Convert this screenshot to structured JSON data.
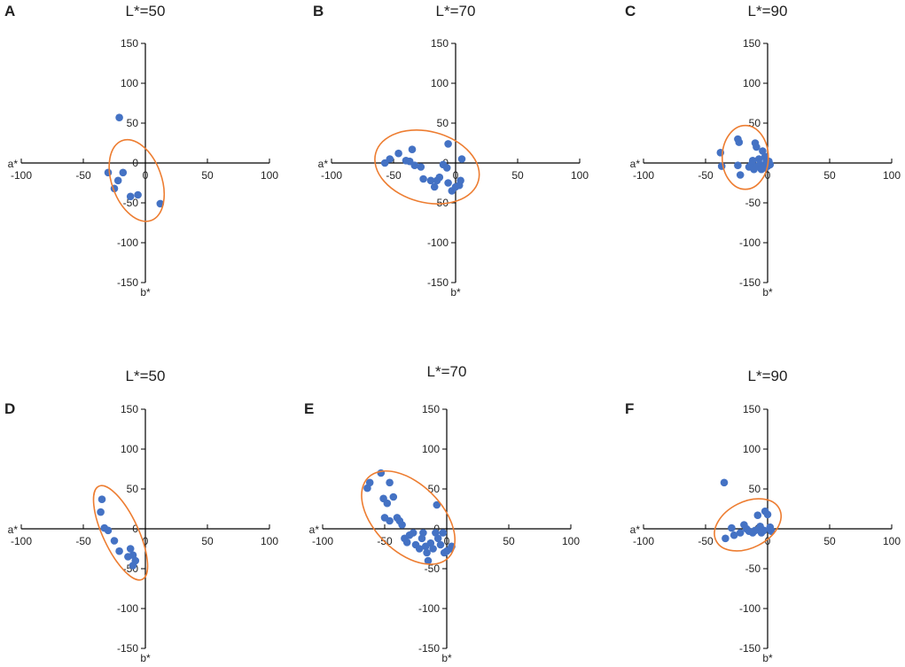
{
  "chart_data": [
    {
      "panel": "A",
      "type": "scatter",
      "title": "L*=50",
      "xlabel": "a*",
      "ylabel": "b*",
      "xlim": [
        -100,
        100
      ],
      "ylim": [
        -150,
        150
      ],
      "xticks": [
        "-100",
        "-50",
        "0",
        "50",
        "100"
      ],
      "yticks": [
        "150",
        "100",
        "50",
        "0",
        "-50",
        "-100",
        "-150"
      ],
      "points": [
        [
          -21,
          57
        ],
        [
          -30,
          -12
        ],
        [
          -18,
          -12
        ],
        [
          -22,
          -22
        ],
        [
          -25,
          -32
        ],
        [
          -12,
          -42
        ],
        [
          -6,
          -40
        ],
        [
          12,
          -51
        ]
      ],
      "ellipse": {
        "cx": -7,
        "cy": -22,
        "rx": 28,
        "ry": 48,
        "rotate_deg": -20
      },
      "colors": {
        "point": "#4472c4",
        "ellipse": "#ed7d31"
      }
    },
    {
      "panel": "B",
      "type": "scatter",
      "title": "L*=70",
      "xlabel": "a*",
      "ylabel": "b*",
      "xlim": [
        -100,
        100
      ],
      "ylim": [
        -150,
        150
      ],
      "xticks": [
        "-100",
        "-50",
        "0",
        "50",
        "100"
      ],
      "yticks": [
        "150",
        "100",
        "50",
        "0",
        "-50",
        "-100",
        "-150"
      ],
      "points": [
        [
          -57,
          0
        ],
        [
          -53,
          5
        ],
        [
          -46,
          12
        ],
        [
          -40,
          3
        ],
        [
          -37,
          2
        ],
        [
          -35,
          17
        ],
        [
          -33,
          -3
        ],
        [
          -28,
          -5
        ],
        [
          -26,
          -20
        ],
        [
          -20,
          -22
        ],
        [
          -17,
          -30
        ],
        [
          -15,
          -22
        ],
        [
          -13,
          -18
        ],
        [
          -10,
          -2
        ],
        [
          -7,
          -6
        ],
        [
          -6,
          24
        ],
        [
          -6,
          -25
        ],
        [
          -3,
          -35
        ],
        [
          0,
          -30
        ],
        [
          3,
          -28
        ],
        [
          4,
          -22
        ],
        [
          5,
          5
        ]
      ],
      "ellipse": {
        "cx": -23,
        "cy": -5,
        "rx": 60,
        "ry": 40,
        "rotate_deg": 15
      },
      "colors": {
        "point": "#4472c4",
        "ellipse": "#ed7d31"
      }
    },
    {
      "panel": "C",
      "type": "scatter",
      "title": "L*=90",
      "xlabel": "a*",
      "ylabel": "b*",
      "xlim": [
        -100,
        100
      ],
      "ylim": [
        -150,
        150
      ],
      "xticks": [
        "-100",
        "-50",
        "0",
        "50",
        "100"
      ],
      "yticks": [
        "150",
        "100",
        "50",
        "0",
        "-50",
        "-100",
        "-150"
      ],
      "points": [
        [
          -38,
          13
        ],
        [
          -37,
          -4
        ],
        [
          -24,
          30
        ],
        [
          -23,
          26
        ],
        [
          -24,
          -3
        ],
        [
          -22,
          -15
        ],
        [
          -15,
          -5
        ],
        [
          -13,
          -2
        ],
        [
          -12,
          3
        ],
        [
          -11,
          -8
        ],
        [
          -10,
          25
        ],
        [
          -9,
          20
        ],
        [
          -8,
          -4
        ],
        [
          -7,
          5
        ],
        [
          -6,
          -2
        ],
        [
          -5,
          -8
        ],
        [
          -4,
          15
        ],
        [
          -3,
          -5
        ],
        [
          -2,
          8
        ],
        [
          -2,
          -6
        ],
        [
          -1,
          3
        ],
        [
          0,
          -4
        ],
        [
          1,
          2
        ],
        [
          2,
          -2
        ]
      ],
      "ellipse": {
        "cx": -18,
        "cy": 7,
        "rx": 26,
        "ry": 36,
        "rotate_deg": 0
      },
      "colors": {
        "point": "#4472c4",
        "ellipse": "#ed7d31"
      }
    },
    {
      "panel": "D",
      "type": "scatter",
      "title": "L*=50",
      "xlabel": "a*",
      "ylabel": "b*",
      "xlim": [
        -100,
        100
      ],
      "ylim": [
        -150,
        150
      ],
      "xticks": [
        "-100",
        "-50",
        "0",
        "50",
        "100"
      ],
      "yticks": [
        "150",
        "100",
        "50",
        "0",
        "-50",
        "-100",
        "-150"
      ],
      "points": [
        [
          -35,
          37
        ],
        [
          -36,
          21
        ],
        [
          -33,
          1
        ],
        [
          -30,
          -2
        ],
        [
          -25,
          -15
        ],
        [
          -21,
          -28
        ],
        [
          -14,
          -35
        ],
        [
          -12,
          -25
        ],
        [
          -10,
          -33
        ],
        [
          -8,
          -40
        ],
        [
          -10,
          -46
        ]
      ],
      "ellipse": {
        "cx": -20,
        "cy": -5,
        "rx": 20,
        "ry": 58,
        "rotate_deg": -25
      },
      "colors": {
        "point": "#4472c4",
        "ellipse": "#ed7d31"
      }
    },
    {
      "panel": "E",
      "type": "scatter",
      "title": "L*=70",
      "xlabel": "a*",
      "ylabel": "b*",
      "xlim": [
        -100,
        100
      ],
      "ylim": [
        -150,
        150
      ],
      "xticks": [
        "-100",
        "-50",
        "0",
        "50",
        "100"
      ],
      "yticks": [
        "150",
        "100",
        "50",
        "0",
        "-50",
        "-100",
        "-150"
      ],
      "points": [
        [
          -64,
          51
        ],
        [
          -62,
          58
        ],
        [
          -53,
          70
        ],
        [
          -46,
          58
        ],
        [
          -51,
          38
        ],
        [
          -48,
          32
        ],
        [
          -50,
          14
        ],
        [
          -46,
          10
        ],
        [
          -43,
          40
        ],
        [
          -40,
          14
        ],
        [
          -38,
          10
        ],
        [
          -36,
          5
        ],
        [
          -34,
          -12
        ],
        [
          -32,
          -17
        ],
        [
          -30,
          -8
        ],
        [
          -27,
          -5
        ],
        [
          -25,
          -20
        ],
        [
          -22,
          -25
        ],
        [
          -20,
          -12
        ],
        [
          -19,
          -5
        ],
        [
          -17,
          -22
        ],
        [
          -16,
          -30
        ],
        [
          -15,
          -40
        ],
        [
          -13,
          -18
        ],
        [
          -11,
          -25
        ],
        [
          -9,
          -5
        ],
        [
          -7,
          -12
        ],
        [
          -5,
          -20
        ],
        [
          -3,
          -5
        ],
        [
          -2,
          -30
        ],
        [
          0,
          -28
        ],
        [
          -8,
          30
        ],
        [
          3,
          -25
        ],
        [
          4,
          -22
        ]
      ],
      "ellipse": {
        "cx": -31,
        "cy": 14,
        "rx": 38,
        "ry": 64,
        "rotate_deg": -45
      },
      "colors": {
        "point": "#4472c4",
        "ellipse": "#ed7d31"
      }
    },
    {
      "panel": "F",
      "type": "scatter",
      "title": "L*=90",
      "xlabel": "a*",
      "ylabel": "b*",
      "xlim": [
        -100,
        100
      ],
      "ylim": [
        -150,
        150
      ],
      "xticks": [
        "-100",
        "-50",
        "0",
        "50",
        "100"
      ],
      "yticks": [
        "150",
        "100",
        "50",
        "0",
        "-50",
        "-100",
        "-150"
      ],
      "points": [
        [
          -35,
          58
        ],
        [
          -34,
          -12
        ],
        [
          -29,
          1
        ],
        [
          -27,
          -8
        ],
        [
          -22,
          -5
        ],
        [
          -19,
          5
        ],
        [
          -17,
          0
        ],
        [
          -15,
          -3
        ],
        [
          -12,
          -5
        ],
        [
          -10,
          -2
        ],
        [
          -8,
          17
        ],
        [
          -6,
          3
        ],
        [
          -5,
          -5
        ],
        [
          -3,
          -2
        ],
        [
          -2,
          22
        ],
        [
          0,
          18
        ],
        [
          2,
          2
        ],
        [
          3,
          -3
        ]
      ],
      "ellipse": {
        "cx": -16,
        "cy": 5,
        "rx": 26,
        "ry": 40,
        "rotate_deg": 63
      },
      "colors": {
        "point": "#4472c4",
        "ellipse": "#ed7d31"
      }
    }
  ]
}
